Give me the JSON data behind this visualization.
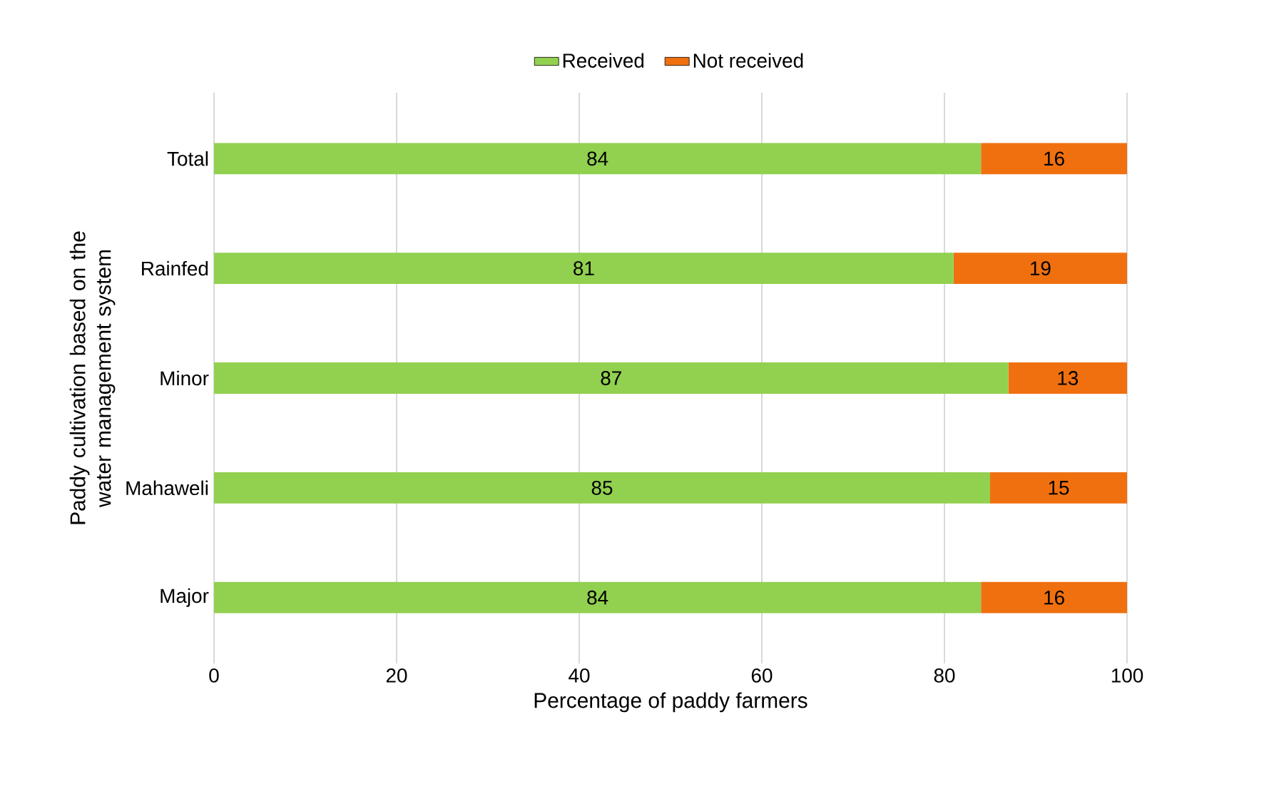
{
  "chart_data": {
    "type": "bar",
    "orientation": "horizontal",
    "stacked": true,
    "categories": [
      "Total",
      "Rainfed",
      "Minor",
      "Mahaweli",
      "Major"
    ],
    "series": [
      {
        "name": "Received",
        "color": "#92d050",
        "values": [
          84,
          81,
          87,
          85,
          84
        ]
      },
      {
        "name": "Not received",
        "color": "#f07010",
        "values": [
          16,
          19,
          13,
          15,
          16
        ]
      }
    ],
    "xlim": [
      0,
      100
    ],
    "xticks": [
      0,
      20,
      40,
      60,
      80,
      100
    ],
    "xlabel": "Percentage of paddy farmers",
    "ylabel": "Paddy cultivation based on the water management system",
    "grid": "x",
    "legend": "top",
    "data_labels": true
  }
}
